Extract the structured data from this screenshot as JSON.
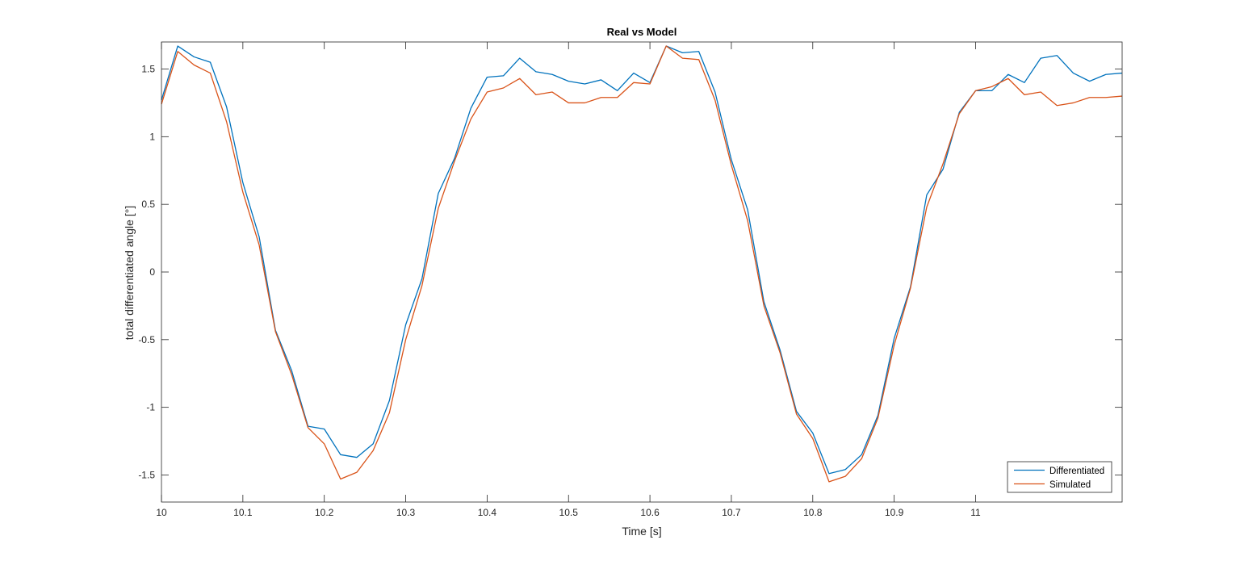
{
  "chart_data": {
    "type": "line",
    "title": "Real vs Model",
    "xlabel": "Time [s]",
    "ylabel": "total differentiated angle [°]",
    "xlim": [
      10,
      11.18
    ],
    "ylim": [
      -1.7,
      1.7
    ],
    "xticks": [
      10,
      10.1,
      10.2,
      10.3,
      10.4,
      10.5,
      10.6,
      10.7,
      10.8,
      10.9,
      11
    ],
    "xtick_labels": [
      "10",
      "10.1",
      "10.2",
      "10.3",
      "10.4",
      "10.5",
      "10.6",
      "10.7",
      "10.8",
      "10.9",
      "11"
    ],
    "yticks": [
      -1.5,
      -1,
      -0.5,
      0,
      0.5,
      1,
      1.5
    ],
    "ytick_labels": [
      "-1.5",
      "-1",
      "-0.5",
      "0",
      "0.5",
      "1",
      "1.5"
    ],
    "grid": false,
    "legend_position": "bottom-right",
    "x": [
      10.0,
      10.02,
      10.04,
      10.06,
      10.08,
      10.1,
      10.12,
      10.14,
      10.16,
      10.18,
      10.2,
      10.22,
      10.24,
      10.26,
      10.28,
      10.3,
      10.32,
      10.34,
      10.36,
      10.38,
      10.4,
      10.42,
      10.44,
      10.46,
      10.48,
      10.5,
      10.52,
      10.54,
      10.56,
      10.58,
      10.6,
      10.62,
      10.64,
      10.66,
      10.68,
      10.7,
      10.72,
      10.74,
      10.76,
      10.78,
      10.8,
      10.82,
      10.84,
      10.86,
      10.88,
      10.9,
      10.92,
      10.94,
      10.96,
      10.98,
      11.0,
      11.02,
      11.04,
      11.06,
      11.08,
      11.1,
      11.12,
      11.14,
      11.16,
      11.18
    ],
    "series": [
      {
        "name": "Differentiated",
        "color": "#0072BD",
        "values": [
          1.27,
          1.67,
          1.59,
          1.55,
          1.22,
          0.66,
          0.26,
          -0.43,
          -0.73,
          -1.14,
          -1.16,
          -1.35,
          -1.37,
          -1.27,
          -0.95,
          -0.39,
          -0.05,
          0.58,
          0.84,
          1.21,
          1.44,
          1.45,
          1.58,
          1.48,
          1.46,
          1.41,
          1.39,
          1.42,
          1.34,
          1.47,
          1.4,
          1.67,
          1.62,
          1.63,
          1.33,
          0.83,
          0.46,
          -0.22,
          -0.58,
          -1.03,
          -1.19,
          -1.49,
          -1.46,
          -1.35,
          -1.06,
          -0.49,
          -0.11,
          0.57,
          0.76,
          1.18,
          1.34,
          1.34,
          1.46,
          1.4,
          1.58,
          1.6,
          1.47,
          1.41,
          1.46,
          1.47
        ]
      },
      {
        "name": "Simulated",
        "color": "#D95319",
        "values": [
          1.24,
          1.63,
          1.53,
          1.47,
          1.11,
          0.59,
          0.2,
          -0.44,
          -0.76,
          -1.15,
          -1.27,
          -1.53,
          -1.48,
          -1.32,
          -1.04,
          -0.5,
          -0.1,
          0.47,
          0.82,
          1.13,
          1.33,
          1.36,
          1.43,
          1.31,
          1.33,
          1.25,
          1.25,
          1.29,
          1.29,
          1.4,
          1.39,
          1.67,
          1.58,
          1.57,
          1.27,
          0.79,
          0.38,
          -0.25,
          -0.6,
          -1.05,
          -1.23,
          -1.55,
          -1.51,
          -1.38,
          -1.08,
          -0.54,
          -0.12,
          0.48,
          0.8,
          1.17,
          1.34,
          1.37,
          1.43,
          1.31,
          1.33,
          1.23,
          1.25,
          1.29,
          1.29,
          1.3
        ]
      }
    ]
  }
}
